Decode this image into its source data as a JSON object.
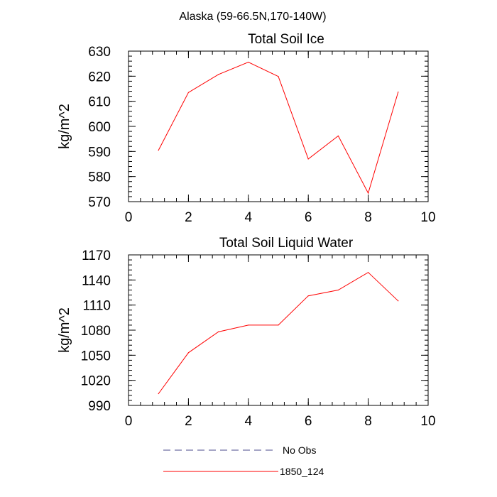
{
  "figure_title": "Alaska (59-66.5N,170-140W)",
  "legend": [
    {
      "label": "No Obs",
      "color": "#4b4b8c",
      "style": "dashed"
    },
    {
      "label": "1850_124",
      "color": "#ff0000",
      "style": "solid"
    }
  ],
  "chart_data": [
    {
      "type": "line",
      "title": "Total Soil Ice",
      "xlabel": "",
      "ylabel": "kg/m^2",
      "xlim": [
        0,
        10
      ],
      "ylim": [
        570,
        630
      ],
      "xticks": [
        0,
        2,
        4,
        6,
        8,
        10
      ],
      "yticks": [
        570,
        580,
        590,
        600,
        610,
        620,
        630
      ],
      "grid": false,
      "series": [
        {
          "name": "1850_124",
          "color": "#ff0000",
          "x": [
            1,
            2,
            3,
            4,
            5,
            6,
            7,
            8,
            9
          ],
          "y": [
            590.5,
            613.5,
            620.7,
            625.6,
            619.9,
            587.0,
            596.2,
            573.4,
            613.7
          ]
        }
      ]
    },
    {
      "type": "line",
      "title": "Total Soil Liquid Water",
      "xlabel": "",
      "ylabel": "kg/m^2",
      "xlim": [
        0,
        10
      ],
      "ylim": [
        990,
        1170
      ],
      "xticks": [
        0,
        2,
        4,
        6,
        8,
        10
      ],
      "yticks": [
        990,
        1020,
        1050,
        1080,
        1110,
        1140,
        1170
      ],
      "grid": false,
      "series": [
        {
          "name": "1850_124",
          "color": "#ff0000",
          "x": [
            1,
            2,
            3,
            4,
            5,
            6,
            7,
            8,
            9
          ],
          "y": [
            1004,
            1053,
            1078,
            1086,
            1086,
            1121,
            1128,
            1149,
            1115
          ]
        }
      ]
    }
  ]
}
